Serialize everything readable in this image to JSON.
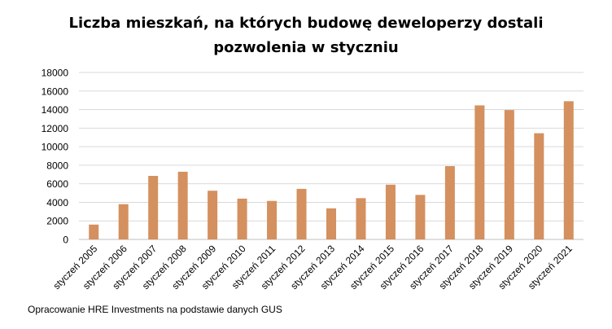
{
  "chart_data": {
    "type": "bar",
    "title_line1": "Liczba mieszkań, na których budowę deweloperzy dostali",
    "title_line2": "pozwolenia w styczniu",
    "categories": [
      "styczeń 2005",
      "styczeń 2006",
      "styczeń 2007",
      "styczeń 2008",
      "styczeń 2009",
      "styczeń 2010",
      "styczeń 2011",
      "styczeń 2012",
      "styczeń 2013",
      "styczeń 2014",
      "styczeń 2015",
      "styczeń 2016",
      "styczeń 2017",
      "styczeń 2018",
      "styczeń 2019",
      "styczeń 2020",
      "styczeń 2021"
    ],
    "values": [
      1600,
      3800,
      6850,
      7300,
      5250,
      4400,
      4150,
      5450,
      3350,
      4450,
      5900,
      4800,
      7900,
      14450,
      13950,
      11450,
      14900
    ],
    "ylim": [
      0,
      18000
    ],
    "yticks": [
      0,
      2000,
      4000,
      6000,
      8000,
      10000,
      12000,
      14000,
      16000,
      18000
    ],
    "grid": true,
    "bar_color": "#d4905e",
    "grid_color": "#d9d9d9"
  },
  "footer": {
    "source": "Opracowanie HRE Investments na podstawie danych GUS"
  }
}
